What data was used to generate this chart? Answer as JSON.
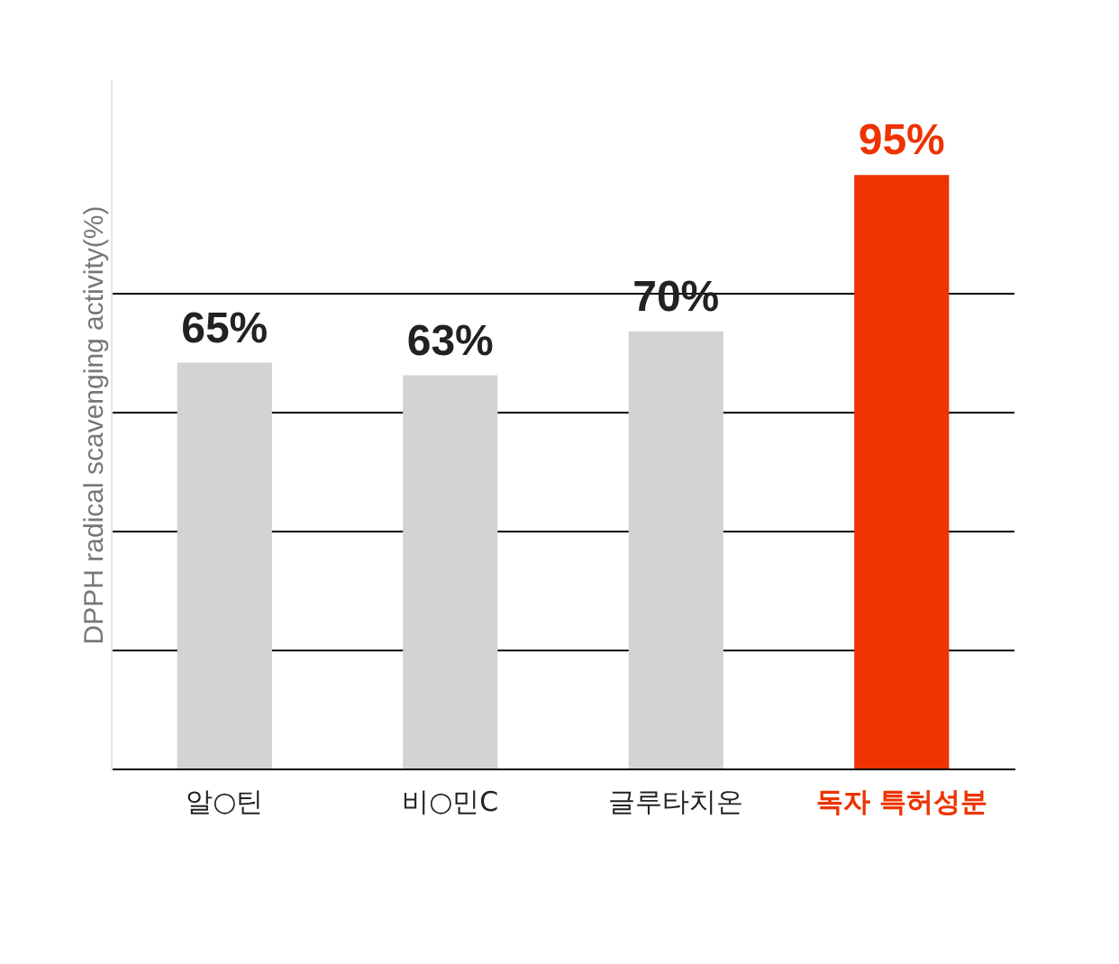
{
  "chart_data": {
    "type": "bar",
    "ylabel": "DPPH radical scavenging activity(%)",
    "categories": [
      "알○틴",
      "비○민C",
      "글루타치온",
      "독자 특허성분"
    ],
    "values": [
      65,
      63,
      70,
      95
    ],
    "colors": [
      "#d3d3d3",
      "#d3d3d3",
      "#d3d3d3",
      "#ee3300"
    ],
    "value_labels": [
      "65%",
      "63%",
      "70%",
      "95%"
    ],
    "ylim": [
      0,
      110
    ],
    "yticks": [
      {
        "value": 0,
        "label": null
      },
      {
        "value": 19,
        "label": null
      },
      {
        "value": 38,
        "label": null
      },
      {
        "value": 57,
        "label": null
      },
      {
        "value": 76,
        "label": null
      }
    ],
    "grid": "y",
    "tick_labels": "x"
  }
}
